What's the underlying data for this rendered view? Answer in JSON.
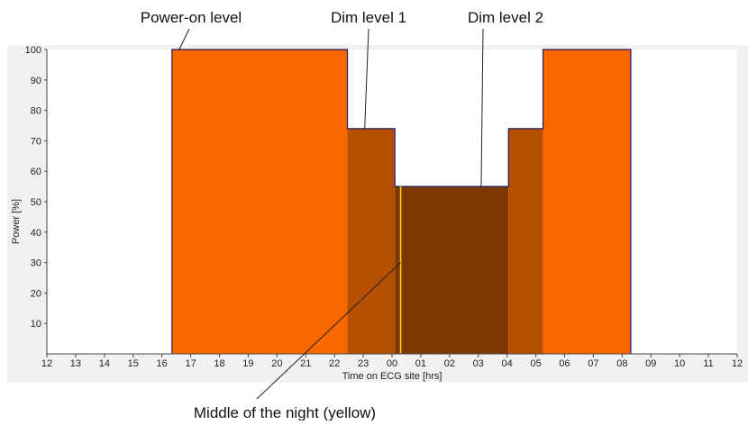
{
  "chart_data": {
    "type": "area",
    "xlabel": "Time on ECG site [hrs]",
    "ylabel": "Power [%]",
    "ylim": [
      0,
      100
    ],
    "x_tick_labels": [
      "12",
      "13",
      "14",
      "15",
      "16",
      "17",
      "18",
      "19",
      "20",
      "21",
      "22",
      "23",
      "00",
      "01",
      "02",
      "03",
      "04",
      "05",
      "06",
      "07",
      "08",
      "09",
      "10",
      "11",
      "12"
    ],
    "y_tick_labels": [
      "10",
      "20",
      "30",
      "40",
      "50",
      "60",
      "70",
      "80",
      "90",
      "100"
    ],
    "grid": false,
    "segments": [
      {
        "level": "Power-on level",
        "start_hour": 16.35,
        "end_hour": 22.45,
        "power": 100,
        "color": "#f86800"
      },
      {
        "level": "Dim level 1",
        "start_hour": 22.45,
        "end_hour": 24.1,
        "power": 74,
        "color": "#b65000"
      },
      {
        "level": "Dim level 2",
        "start_hour": 24.1,
        "end_hour": 28.05,
        "power": 55,
        "color": "#7f3700"
      },
      {
        "level": "Dim level 1",
        "start_hour": 28.05,
        "end_hour": 29.25,
        "power": 74,
        "color": "#b65000"
      },
      {
        "level": "Power-on level",
        "start_hour": 29.25,
        "end_hour": 32.3,
        "power": 100,
        "color": "#f86800"
      }
    ],
    "middle_of_night_hour": 24.3,
    "middle_of_night_color": "#ffd700",
    "annotations": [
      {
        "text": "Power-on level",
        "target_hour": 16.6,
        "target_power": 100
      },
      {
        "text": "Dim level 1",
        "target_hour": 23.05,
        "target_power": 74
      },
      {
        "text": "Dim level 2",
        "target_hour": 27.1,
        "target_power": 55
      },
      {
        "text": "Middle of the night (yellow)",
        "target_hour": 24.3,
        "target_power": 30
      }
    ]
  }
}
